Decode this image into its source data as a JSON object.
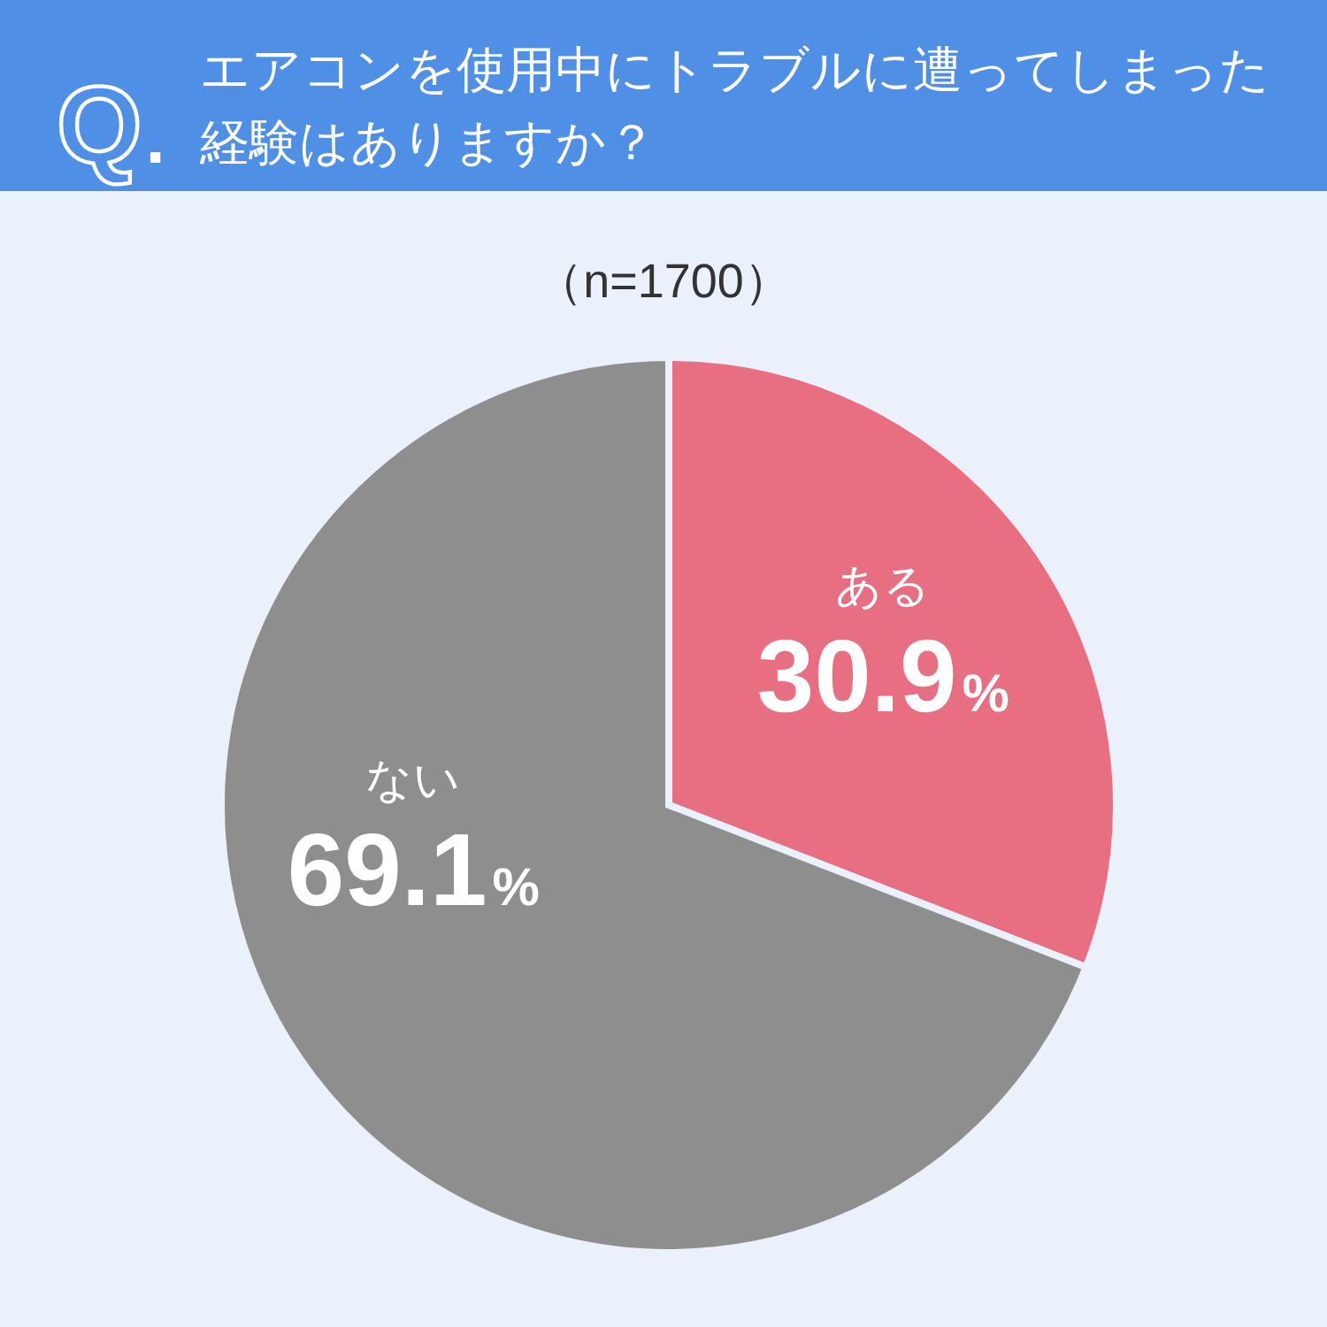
{
  "chart_data": {
    "type": "pie",
    "title": "エアコンを使用中にトラブルに遭ってしまった経験はありますか？",
    "subtitle": "（n=1700）",
    "annotations": [
      "Q."
    ],
    "categories": [
      "ある",
      "ない"
    ],
    "values": [
      30.9,
      69.1
    ],
    "colors": [
      "#e86f82",
      "#8e8e8e"
    ],
    "value_labels": [
      "30.9%",
      "69.1%"
    ]
  }
}
